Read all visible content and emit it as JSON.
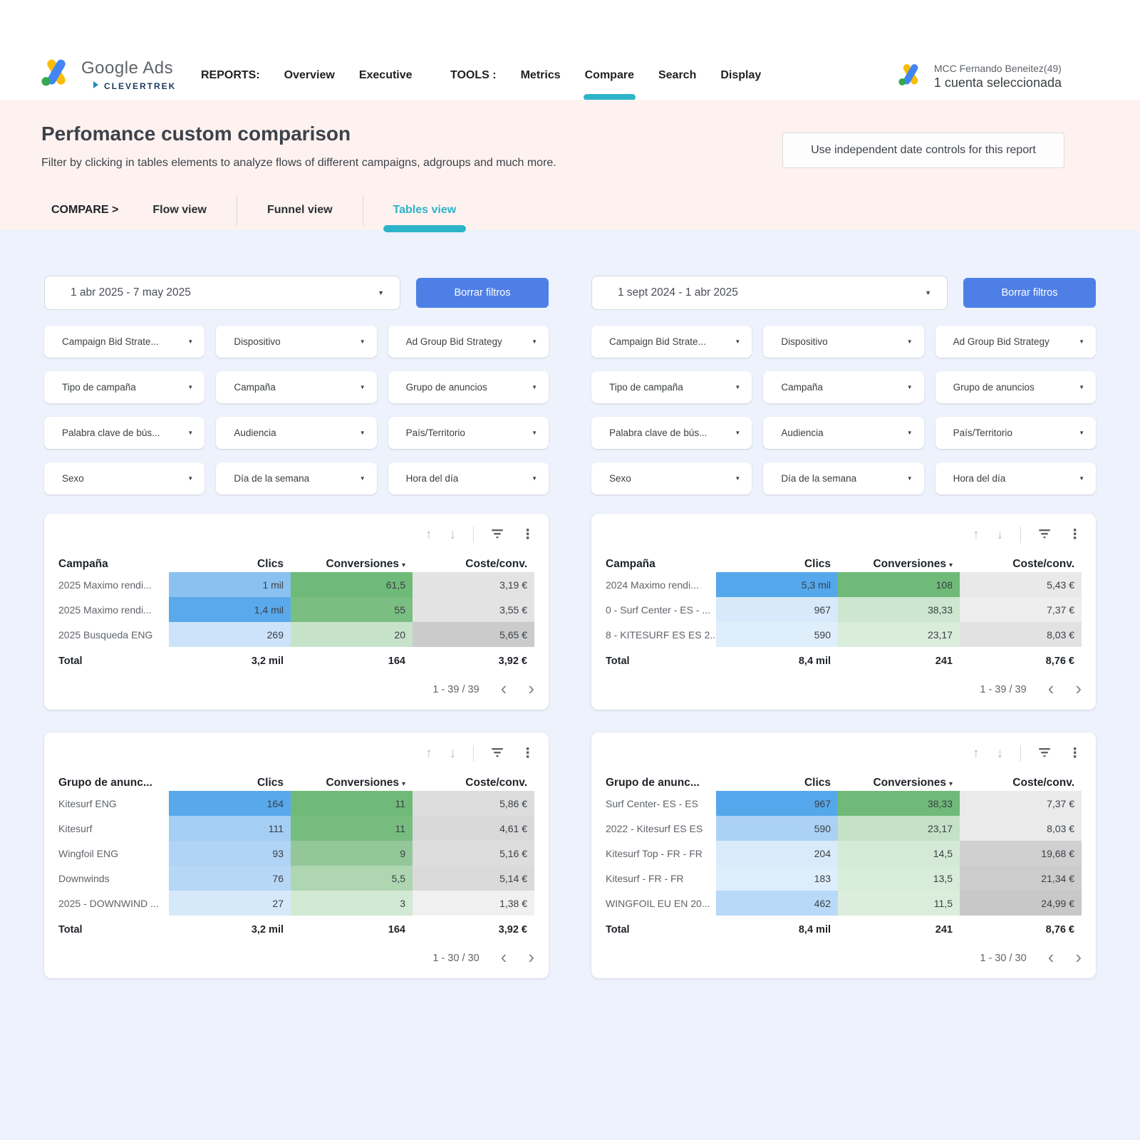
{
  "theme": {
    "accent_teal": "#2eb4c8",
    "button_blue": "#4d7fe6",
    "band_pink": "#fdf2f0",
    "page_bg": "#edf2fc"
  },
  "icons": {
    "sort_asc": "↑",
    "sort_desc": "↓",
    "more": "⋮",
    "caret": "▼",
    "sort_caret": "▾",
    "prev": "‹",
    "next": "›"
  },
  "brand": {
    "name": "Google Ads",
    "sub_brand": "CLEVERTREK"
  },
  "nav": {
    "reports_label": "REPORTS:",
    "reports_items": [
      "Overview",
      "Executive"
    ],
    "tools_label": "TOOLS :",
    "tools_items": [
      "Metrics",
      "Compare",
      "Search",
      "Display"
    ],
    "active_item": "Compare"
  },
  "account": {
    "name": "MCC Fernando Beneitez(49)",
    "selected": "1 cuenta seleccionada"
  },
  "hero": {
    "title": "Perfomance custom comparison",
    "subtitle": "Filter by clicking in tables elements to analyze flows of different campaigns, adgroups and much more.",
    "date_controls_button": "Use independent date controls for this report"
  },
  "tabs": {
    "compare_label": "COMPARE  >",
    "items": [
      "Flow view",
      "Funnel view",
      "Tables view"
    ],
    "active": "Tables view"
  },
  "panels": [
    {
      "date_range": "1 abr 2025 - 7 may 2025",
      "clear_button": "Borrar filtros",
      "filters": [
        "Campaign Bid Strate...",
        "Dispositivo",
        "Ad Group Bid Strategy",
        "Tipo de campaña",
        "Campaña",
        "Grupo de anuncios",
        "Palabra clave de bús...",
        "Audiencia",
        "País/Territorio",
        "Sexo",
        "Día de la semana",
        "Hora del día"
      ],
      "tables": [
        {
          "dim_header": "Campaña",
          "columns": [
            "Clics",
            "Conversiones",
            "Coste/conv."
          ],
          "sorted_column": "Conversiones",
          "rows": [
            {
              "name": "2025 Maximo rendi...",
              "cells": [
                [
                  "1 mil",
                  "#8bc1f0"
                ],
                [
                  "61,5",
                  "#6fba78"
                ],
                [
                  "3,19 €",
                  "#e3e3e3"
                ]
              ]
            },
            {
              "name": "2025 Maximo rendi...",
              "cells": [
                [
                  "1,4 mil",
                  "#5aa9ec"
                ],
                [
                  "55",
                  "#7abe82"
                ],
                [
                  "3,55 €",
                  "#e3e3e3"
                ]
              ]
            },
            {
              "name": "2025 Busqueda ENG",
              "cells": [
                [
                  "269",
                  "#cde3f9"
                ],
                [
                  "20",
                  "#c6e3c9"
                ],
                [
                  "5,65 €",
                  "#cbcbcb"
                ]
              ]
            }
          ],
          "total": {
            "label": "Total",
            "values": [
              "3,2 mil",
              "164",
              "3,92 €"
            ]
          },
          "pagination": "1 - 39 / 39"
        },
        {
          "dim_header": "Grupo de anunc...",
          "columns": [
            "Clics",
            "Conversiones",
            "Coste/conv."
          ],
          "sorted_column": "Conversiones",
          "rows": [
            {
              "name": "Kitesurf ENG",
              "cells": [
                [
                  "164",
                  "#58a8ec"
                ],
                [
                  "11",
                  "#6fba78"
                ],
                [
                  "5,86 €",
                  "#dddddd"
                ]
              ]
            },
            {
              "name": "Kitesurf",
              "cells": [
                [
                  "111",
                  "#a5cef4"
                ],
                [
                  "11",
                  "#78bd80"
                ],
                [
                  "4,61 €",
                  "#d9d9d9"
                ]
              ]
            },
            {
              "name": "Wingfoil ENG",
              "cells": [
                [
                  "93",
                  "#afd4f5"
                ],
                [
                  "9",
                  "#93c79a"
                ],
                [
                  "5,16 €",
                  "#dddddd"
                ]
              ]
            },
            {
              "name": "Downwinds",
              "cells": [
                [
                  "76",
                  "#b6d7f6"
                ],
                [
                  "5,5",
                  "#aed6b1"
                ],
                [
                  "5,14 €",
                  "#dadada"
                ]
              ]
            },
            {
              "name": "2025 - DOWNWIND ...",
              "cells": [
                [
                  "27",
                  "#d6e9fa"
                ],
                [
                  "3",
                  "#d2e9d4"
                ],
                [
                  "1,38 €",
                  "#f0f0f0"
                ]
              ]
            }
          ],
          "total": {
            "label": "Total",
            "values": [
              "3,2 mil",
              "164",
              "3,92 €"
            ]
          },
          "pagination": "1 - 30 / 30"
        }
      ]
    },
    {
      "date_range": "1 sept 2024 - 1 abr 2025",
      "clear_button": "Borrar filtros",
      "filters": [
        "Campaign Bid Strate...",
        "Dispositivo",
        "Ad Group Bid Strategy",
        "Tipo de campaña",
        "Campaña",
        "Grupo de anuncios",
        "Palabra clave de bús...",
        "Audiencia",
        "País/Territorio",
        "Sexo",
        "Día de la semana",
        "Hora del día"
      ],
      "tables": [
        {
          "dim_header": "Campaña",
          "columns": [
            "Clics",
            "Conversiones",
            "Coste/conv."
          ],
          "sorted_column": "Conversiones",
          "rows": [
            {
              "name": "2024 Maximo rendi...",
              "cells": [
                [
                  "5,3 mil",
                  "#55a7ec"
                ],
                [
                  "108",
                  "#6fba78"
                ],
                [
                  "5,43 €",
                  "#e9e9e9"
                ]
              ]
            },
            {
              "name": "0 - Surf Center - ES - ...",
              "cells": [
                [
                  "967",
                  "#d7e9fa"
                ],
                [
                  "38,33",
                  "#cde6cf"
                ],
                [
                  "7,37 €",
                  "#eeeeee"
                ]
              ]
            },
            {
              "name": "8 - KITESURF ES ES 2...",
              "cells": [
                [
                  "590",
                  "#dfeefb"
                ],
                [
                  "23,17",
                  "#d9edda"
                ],
                [
                  "8,03 €",
                  "#e2e2e2"
                ]
              ]
            }
          ],
          "total": {
            "label": "Total",
            "values": [
              "8,4 mil",
              "241",
              "8,76 €"
            ]
          },
          "pagination": "1 - 39 / 39"
        },
        {
          "dim_header": "Grupo de anunc...",
          "columns": [
            "Clics",
            "Conversiones",
            "Coste/conv."
          ],
          "sorted_column": "Conversiones",
          "rows": [
            {
              "name": "Surf Center- ES - ES",
              "cells": [
                [
                  "967",
                  "#55a7ec"
                ],
                [
                  "38,33",
                  "#6fba78"
                ],
                [
                  "7,37 €",
                  "#eaeaea"
                ]
              ]
            },
            {
              "name": "2022 - Kitesurf ES ES",
              "cells": [
                [
                  "590",
                  "#abd2f4"
                ],
                [
                  "23,17",
                  "#c5e2c8"
                ],
                [
                  "8,03 €",
                  "#eaeaea"
                ]
              ]
            },
            {
              "name": "Kitesurf Top - FR - FR",
              "cells": [
                [
                  "204",
                  "#d9eafa"
                ],
                [
                  "14,5",
                  "#d4ead6"
                ],
                [
                  "19,68 €",
                  "#d0d0d0"
                ]
              ]
            },
            {
              "name": "Kitesurf - FR - FR",
              "cells": [
                [
                  "183",
                  "#deedfb"
                ],
                [
                  "13,5",
                  "#d7ecd9"
                ],
                [
                  "21,34 €",
                  "#cccccc"
                ]
              ]
            },
            {
              "name": "WINGFOIL EU EN 20...",
              "cells": [
                [
                  "462",
                  "#b8d9f7"
                ],
                [
                  "11,5",
                  "#daeedb"
                ],
                [
                  "24,99 €",
                  "#c8c8c8"
                ]
              ]
            }
          ],
          "total": {
            "label": "Total",
            "values": [
              "8,4 mil",
              "241",
              "8,76 €"
            ]
          },
          "pagination": "1 - 30 / 30"
        }
      ]
    }
  ]
}
